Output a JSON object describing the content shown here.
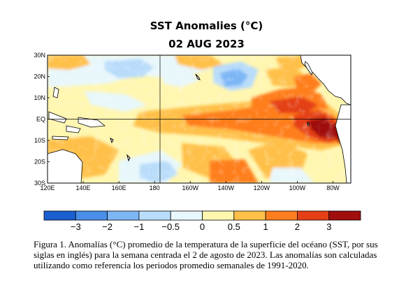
{
  "title": "SST Anomalies (°C)",
  "subtitle": "02 AUG 2023",
  "caption": "Figura 1. Anomalías (°C) promedio de la temperatura de la superficie del océano (SST, por sus siglas en inglés) para la semana centrada el 2 de agosto de 2023. Las anomalías son calculadas utilizando como referencia los periodos promedio semanales de 1991-2020.",
  "chart_data": {
    "type": "heatmap",
    "x_ticks": [
      "120E",
      "140E",
      "160E",
      "180",
      "160W",
      "140W",
      "120W",
      "100W",
      "80W"
    ],
    "y_ticks": [
      "30N",
      "20N",
      "10N",
      "EQ",
      "10S",
      "20S",
      "30S"
    ],
    "colorbar": {
      "tick_labels": [
        "−3",
        "−2",
        "−1",
        "−0.5",
        "0",
        "0.5",
        "1",
        "2",
        "3"
      ],
      "colors": [
        "#1a5fcf",
        "#4a8ee8",
        "#7db6f5",
        "#b8dcfa",
        "#e8f7fb",
        "#fff6b0",
        "#ffc04a",
        "#ff7e1f",
        "#e43f16",
        "#a00e0e"
      ]
    },
    "grid": "equator and dateline lines",
    "land_color": "#ffffff"
  }
}
